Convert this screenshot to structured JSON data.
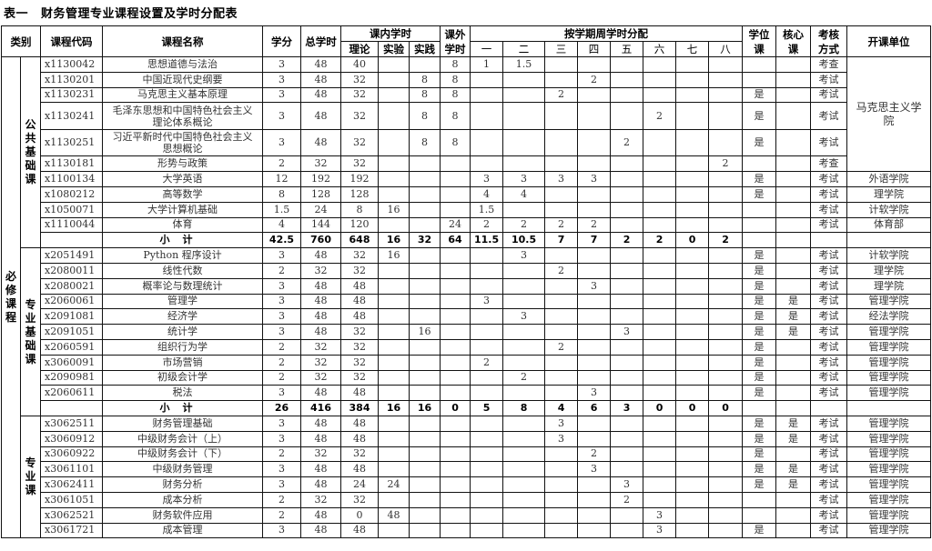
{
  "title": {
    "label": "表一",
    "text": "财务管理专业课程设置及学时分配表"
  },
  "headers": {
    "category": "类别",
    "code": "课程代码",
    "name": "课程名称",
    "credit": "学分",
    "total": "总学时",
    "in_class": "课内学时",
    "theory": "理论",
    "lab": "实验",
    "practice": "实践",
    "extra": "课外学时",
    "semester_group": "按学期周学时分配",
    "semesters": [
      "一",
      "二",
      "三",
      "四",
      "五",
      "六",
      "七",
      "八"
    ],
    "degree": "学位课",
    "core": "核心课",
    "exam": "考核方式",
    "dept": "开课单位"
  },
  "outer_category": "必修课程",
  "sections": [
    {
      "name": "公共基础课",
      "rows": [
        [
          "x1130042",
          "思想道德与法治",
          "3",
          "48",
          "40",
          "",
          "",
          "8",
          "1",
          "1.5",
          "",
          "",
          "",
          "",
          "",
          "",
          "",
          "",
          "考查",
          "马克思主义学院"
        ],
        [
          "x1130201",
          "中国近现代史纲要",
          "3",
          "48",
          "32",
          "",
          "8",
          "8",
          "",
          "",
          "",
          "2",
          "",
          "",
          "",
          "",
          "",
          "",
          "考试",
          null
        ],
        [
          "x1130231",
          "马克思主义基本原理",
          "3",
          "48",
          "32",
          "",
          "8",
          "8",
          "",
          "",
          "2",
          "",
          "",
          "",
          "",
          "",
          "是",
          "",
          "考试",
          null
        ],
        [
          "x1130241",
          "毛泽东思想和中国特色社会主义理论体系概论",
          "3",
          "48",
          "32",
          "",
          "8",
          "8",
          "",
          "",
          "",
          "",
          "",
          "2",
          "",
          "",
          "是",
          "",
          "考试",
          null
        ],
        [
          "x1130251",
          "习近平新时代中国特色社会主义思想概论",
          "3",
          "48",
          "32",
          "",
          "8",
          "8",
          "",
          "",
          "",
          "",
          "2",
          "",
          "",
          "",
          "是",
          "",
          "考试",
          null
        ],
        [
          "x1130181",
          "形势与政策",
          "2",
          "32",
          "32",
          "",
          "",
          "",
          "",
          "",
          "",
          "",
          "",
          "",
          "",
          "2",
          "",
          "",
          "考查",
          null
        ],
        [
          "x1100134",
          "大学英语",
          "12",
          "192",
          "192",
          "",
          "",
          "",
          "3",
          "3",
          "3",
          "3",
          "",
          "",
          "",
          "",
          "是",
          "",
          "考试",
          "外语学院"
        ],
        [
          "x1080212",
          "高等数学",
          "8",
          "128",
          "128",
          "",
          "",
          "",
          "4",
          "4",
          "",
          "",
          "",
          "",
          "",
          "",
          "是",
          "",
          "考试",
          "理学院"
        ],
        [
          "x1050071",
          "大学计算机基础",
          "1.5",
          "24",
          "8",
          "16",
          "",
          "",
          "1.5",
          "",
          "",
          "",
          "",
          "",
          "",
          "",
          "",
          "",
          "考试",
          "计软学院"
        ],
        [
          "x1110044",
          "体育",
          "4",
          "144",
          "120",
          "",
          "",
          "24",
          "2",
          "2",
          "2",
          "2",
          "",
          "",
          "",
          "",
          "",
          "",
          "考试",
          "体育部"
        ]
      ],
      "subtotal": [
        "",
        "小计",
        "42.5",
        "760",
        "648",
        "16",
        "32",
        "64",
        "11.5",
        "10.5",
        "7",
        "7",
        "2",
        "2",
        "0",
        "2",
        "",
        "",
        "",
        ""
      ]
    },
    {
      "name": "专业基础课",
      "rows": [
        [
          "x2051491",
          "Python 程序设计",
          "3",
          "48",
          "32",
          "16",
          "",
          "",
          "",
          "3",
          "",
          "",
          "",
          "",
          "",
          "",
          "是",
          "",
          "考试",
          "计软学院"
        ],
        [
          "x2080011",
          "线性代数",
          "2",
          "32",
          "32",
          "",
          "",
          "",
          "",
          "",
          "2",
          "",
          "",
          "",
          "",
          "",
          "是",
          "",
          "考试",
          "理学院"
        ],
        [
          "x2080021",
          "概率论与数理统计",
          "3",
          "48",
          "48",
          "",
          "",
          "",
          "",
          "",
          "",
          "3",
          "",
          "",
          "",
          "",
          "是",
          "",
          "考试",
          "理学院"
        ],
        [
          "x2060061",
          "管理学",
          "3",
          "48",
          "48",
          "",
          "",
          "",
          "3",
          "",
          "",
          "",
          "",
          "",
          "",
          "",
          "是",
          "是",
          "考试",
          "管理学院"
        ],
        [
          "x2091081",
          "经济学",
          "3",
          "48",
          "48",
          "",
          "",
          "",
          "",
          "3",
          "",
          "",
          "",
          "",
          "",
          "",
          "是",
          "是",
          "考试",
          "经法学院"
        ],
        [
          "x2091051",
          "统计学",
          "3",
          "48",
          "32",
          "",
          "16",
          "",
          "",
          "",
          "",
          "",
          "3",
          "",
          "",
          "",
          "是",
          "是",
          "考试",
          "管理学院"
        ],
        [
          "x2060591",
          "组织行为学",
          "2",
          "32",
          "32",
          "",
          "",
          "",
          "",
          "",
          "2",
          "",
          "",
          "",
          "",
          "",
          "是",
          "",
          "考试",
          "管理学院"
        ],
        [
          "x3060091",
          "市场营销",
          "2",
          "32",
          "32",
          "",
          "",
          "",
          "2",
          "",
          "",
          "",
          "",
          "",
          "",
          "",
          "是",
          "",
          "考试",
          "管理学院"
        ],
        [
          "x2090981",
          "初级会计学",
          "2",
          "32",
          "32",
          "",
          "",
          "",
          "",
          "2",
          "",
          "",
          "",
          "",
          "",
          "",
          "是",
          "",
          "考试",
          "管理学院"
        ],
        [
          "x2060611",
          "税法",
          "3",
          "48",
          "48",
          "",
          "",
          "",
          "",
          "",
          "",
          "3",
          "",
          "",
          "",
          "",
          "是",
          "",
          "考试",
          "管理学院"
        ]
      ],
      "subtotal": [
        "",
        "小计",
        "26",
        "416",
        "384",
        "16",
        "16",
        "0",
        "5",
        "8",
        "4",
        "6",
        "3",
        "0",
        "0",
        "0",
        "",
        "",
        "",
        ""
      ]
    },
    {
      "name": "专业课",
      "rows": [
        [
          "x3062511",
          "财务管理基础",
          "3",
          "48",
          "48",
          "",
          "",
          "",
          "",
          "",
          "3",
          "",
          "",
          "",
          "",
          "",
          "是",
          "是",
          "考试",
          "管理学院"
        ],
        [
          "x3060912",
          "中级财务会计（上）",
          "3",
          "48",
          "48",
          "",
          "",
          "",
          "",
          "",
          "3",
          "",
          "",
          "",
          "",
          "",
          "是",
          "是",
          "考试",
          "管理学院"
        ],
        [
          "x3060922",
          "中级财务会计（下）",
          "2",
          "32",
          "32",
          "",
          "",
          "",
          "",
          "",
          "",
          "2",
          "",
          "",
          "",
          "",
          "是",
          "",
          "考试",
          "管理学院"
        ],
        [
          "x3061101",
          "中级财务管理",
          "3",
          "48",
          "48",
          "",
          "",
          "",
          "",
          "",
          "",
          "3",
          "",
          "",
          "",
          "",
          "是",
          "是",
          "考试",
          "管理学院"
        ],
        [
          "x3062411",
          "财务分析",
          "3",
          "48",
          "24",
          "24",
          "",
          "",
          "",
          "",
          "",
          "",
          "3",
          "",
          "",
          "",
          "是",
          "是",
          "考试",
          "管理学院"
        ],
        [
          "x3061051",
          "成本分析",
          "2",
          "32",
          "32",
          "",
          "",
          "",
          "",
          "",
          "",
          "",
          "2",
          "",
          "",
          "",
          "",
          "",
          "考试",
          "管理学院"
        ],
        [
          "x3062521",
          "财务软件应用",
          "2",
          "48",
          "0",
          "48",
          "",
          "",
          "",
          "",
          "",
          "",
          "",
          "3",
          "",
          "",
          "",
          "",
          "考试",
          "管理学院"
        ],
        [
          "x3061721",
          "成本管理",
          "3",
          "48",
          "48",
          "",
          "",
          "",
          "",
          "",
          "",
          "",
          "",
          "3",
          "",
          "",
          "是",
          "",
          "考试",
          "管理学院"
        ]
      ]
    }
  ]
}
